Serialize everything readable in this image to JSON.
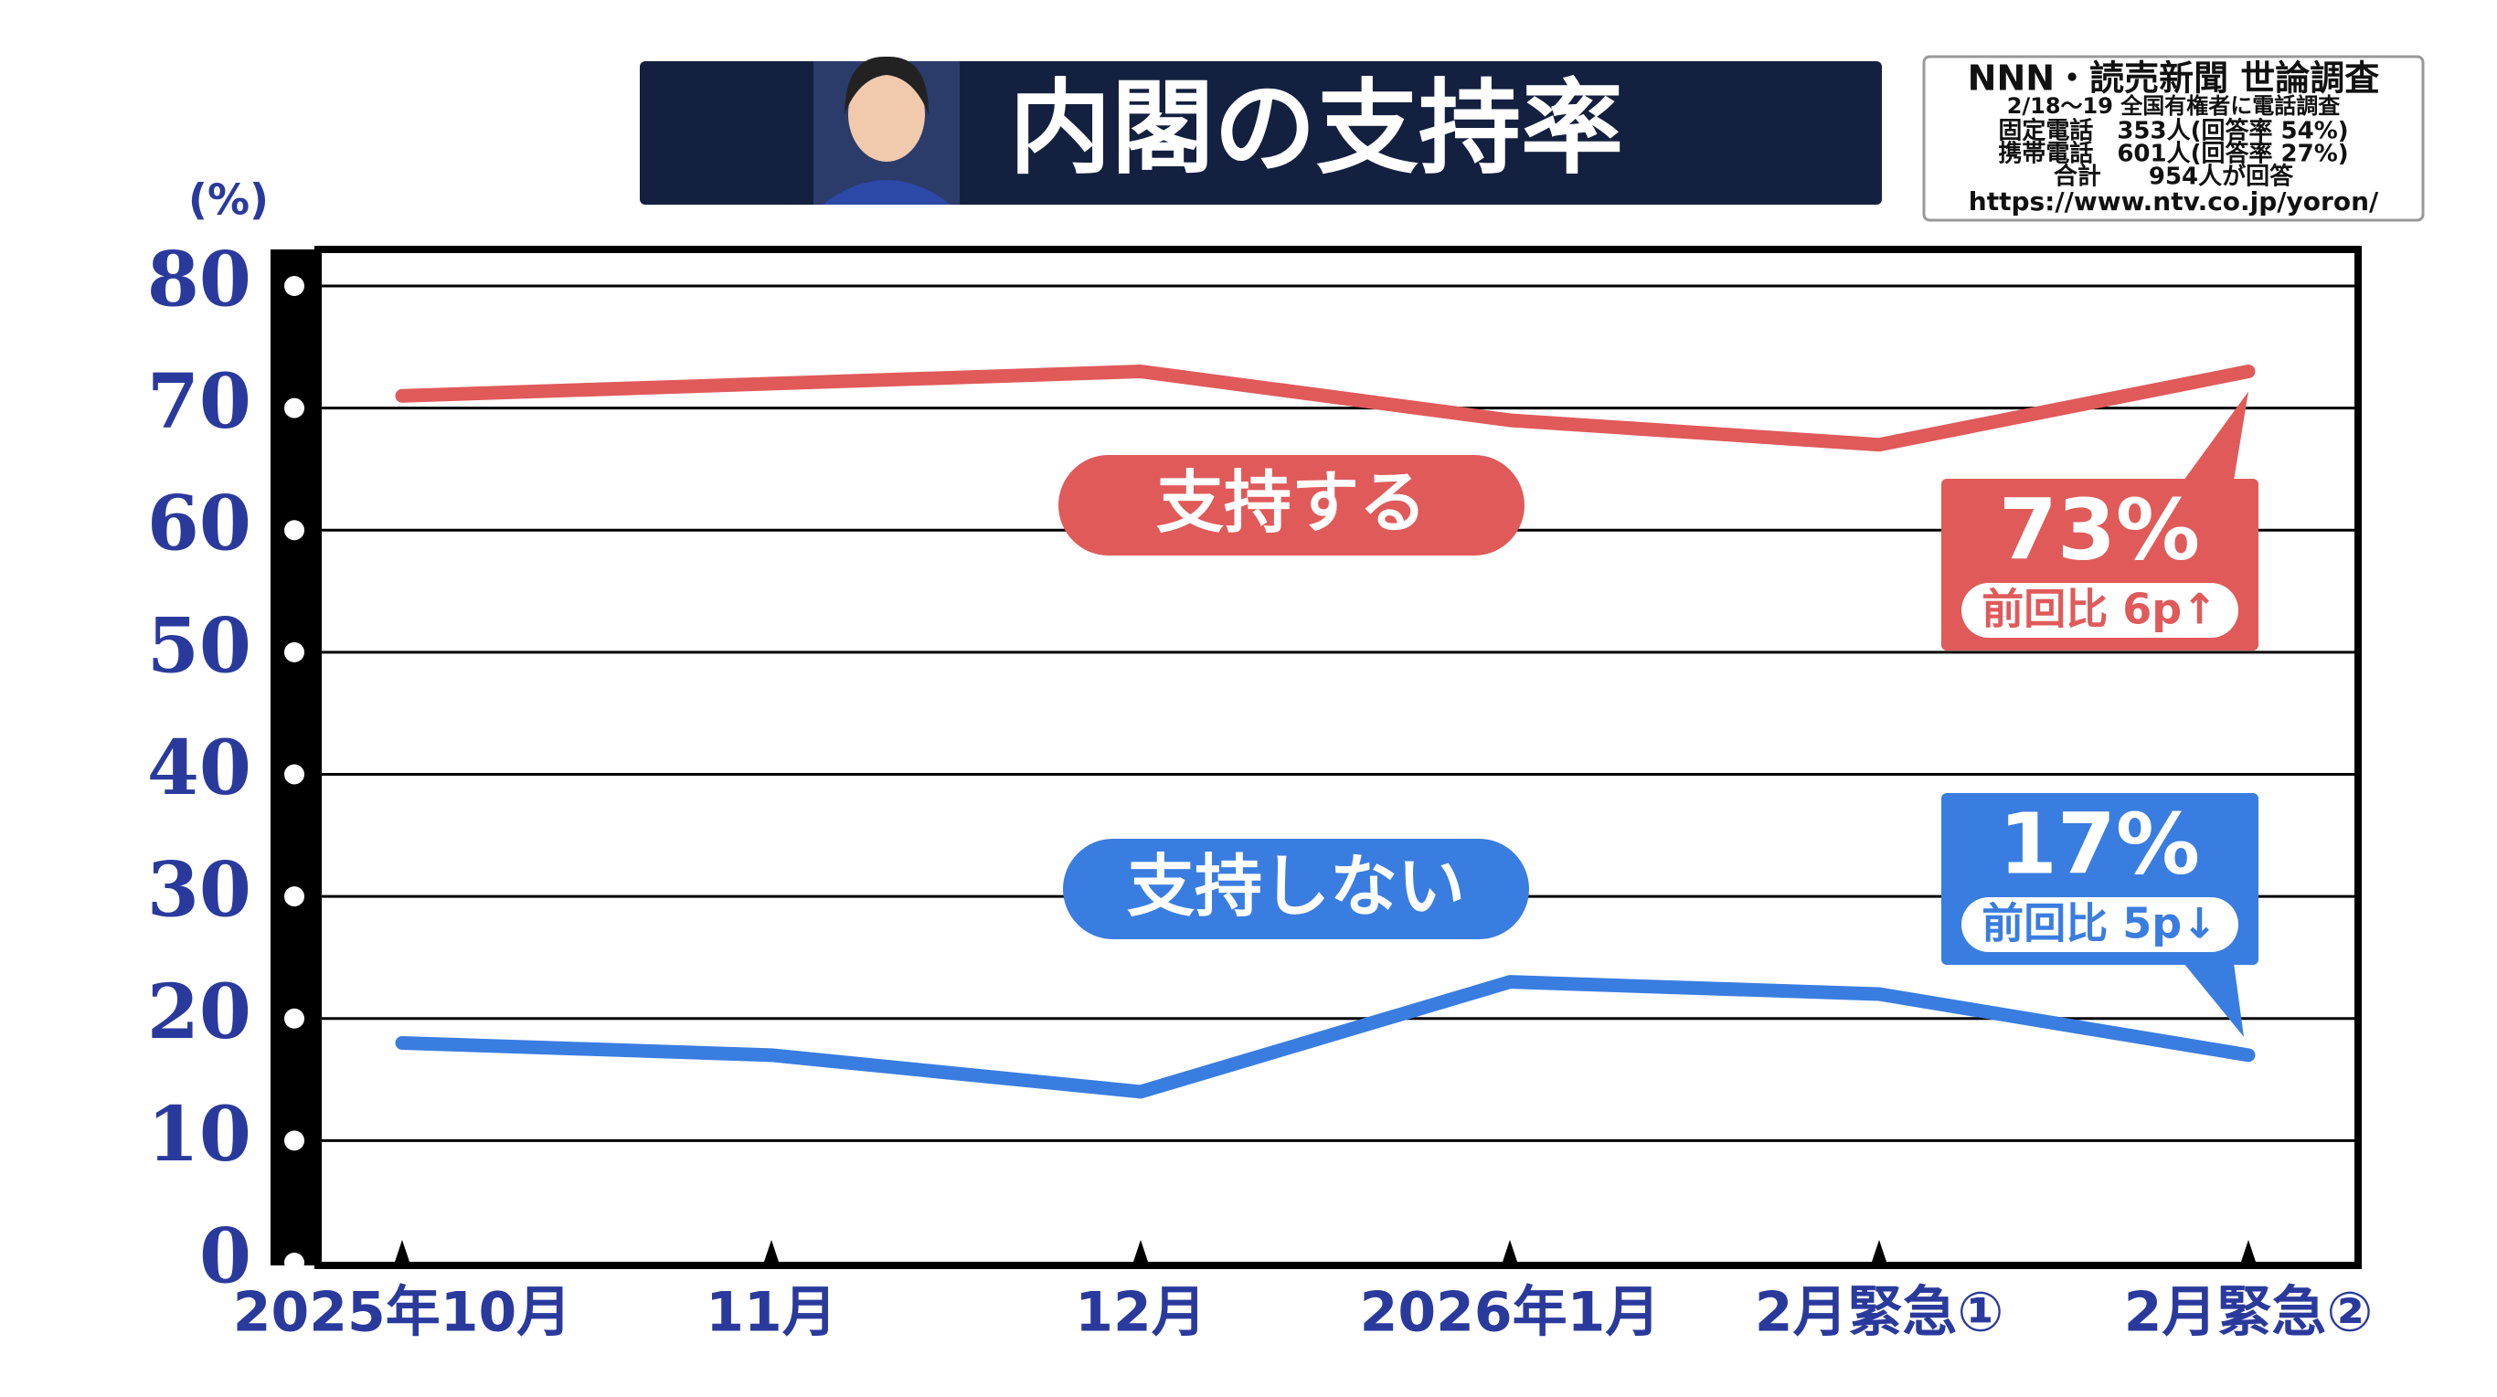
{
  "chart_data": {
    "type": "line",
    "title": "内閣の支持率",
    "y_unit_label": "(%)",
    "source": [
      "NNN・読売新聞 世論調査",
      "2/18〜19 全国有権者に電話調査",
      "固定電話　353人(回答率 54%)",
      "携帯電話　601人(回答率 27%)",
      "合計　　954人が回答",
      "https://www.ntv.co.jp/yoron/"
    ],
    "categories": [
      "2025年10月",
      "11月",
      "12月",
      "2026年1月",
      "2月緊急①",
      "2月緊急②"
    ],
    "series": [
      {
        "name": "支持する",
        "color": "#e05a5a",
        "values": [
          71,
          72,
          73,
          69,
          67,
          73
        ],
        "value_labels": [
          null,
          null,
          null,
          null,
          null,
          "73%"
        ],
        "change_label": "前回比 6p↑"
      },
      {
        "name": "支持しない",
        "color": "#3a7de0",
        "values": [
          18,
          17,
          14,
          23,
          22,
          17
        ],
        "value_labels": [
          null,
          null,
          null,
          null,
          null,
          "17%"
        ],
        "change_label": "前回比 5p↓"
      }
    ],
    "ylim": [
      0,
      80
    ],
    "yticks": [
      0,
      10,
      20,
      30,
      40,
      50,
      60,
      70,
      80
    ],
    "grid": true
  }
}
